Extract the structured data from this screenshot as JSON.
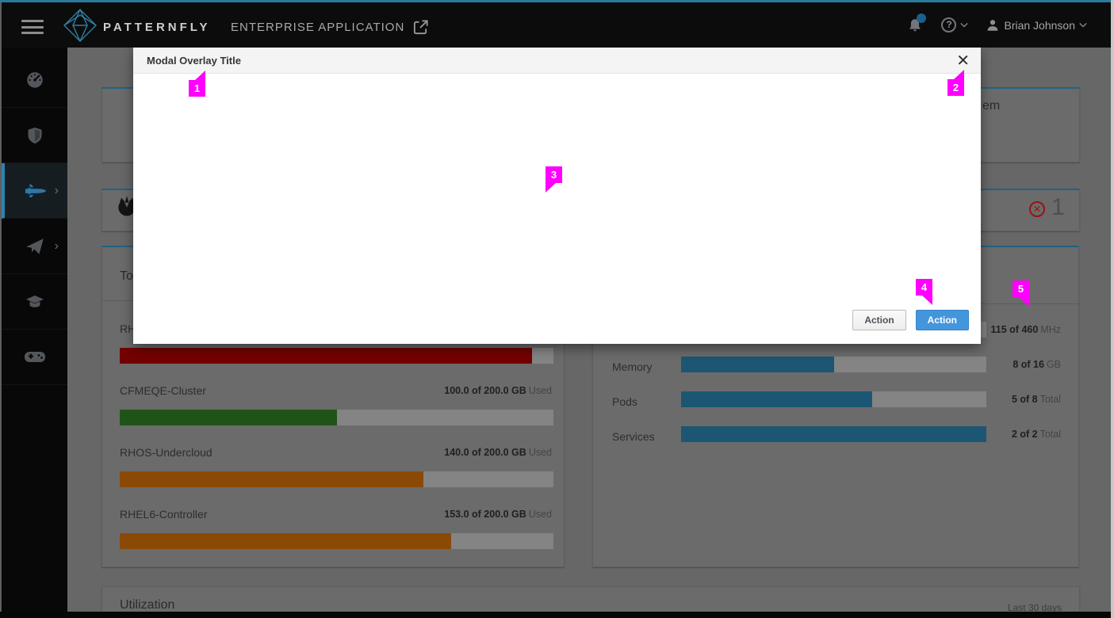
{
  "frame": {
    "top_border_color": "#2a7a9d",
    "bottom_bar_color": "#070707",
    "right_edge_color": "#c9c9c9"
  },
  "navbar": {
    "brand_bold": "PATTERNFLY",
    "brand_rest": "ENTERPRISE APPLICATION",
    "user_name": "Brian Johnson",
    "notification_dot_color": "#1c5f8c",
    "icons": [
      "hamburger-icon",
      "patternfly-logo",
      "external-link-icon",
      "bell-icon",
      "question-circle-icon",
      "user-icon",
      "chevron-down-icon"
    ]
  },
  "sidebar": {
    "items": [
      {
        "icon": "dashboard-icon",
        "active": false,
        "has_submenu": false
      },
      {
        "icon": "shield-icon",
        "active": false,
        "has_submenu": false
      },
      {
        "icon": "space-shuttle-icon",
        "active": true,
        "has_submenu": true
      },
      {
        "icon": "paper-plane-icon",
        "active": false,
        "has_submenu": true
      },
      {
        "icon": "graduation-cap-icon",
        "active": false,
        "has_submenu": false
      },
      {
        "icon": "gamepad-icon",
        "active": false,
        "has_submenu": false
      }
    ],
    "submenu_chevron": "›"
  },
  "modal": {
    "title": "Modal Overlay Title",
    "close_glyph": "✕",
    "secondary_button": "Action",
    "primary_button": "Action",
    "primary_color": "#4396dc"
  },
  "background": {
    "top_card_text_fragment": "em",
    "status_card": {
      "count": "1",
      "error_glyph": "✕",
      "icon": "error-circle-icon"
    },
    "left_status_card": {
      "icon": "rebel-icon"
    },
    "clusters_card": {
      "title_fragment": "To",
      "rows": [
        {
          "label": "RH",
          "value_bold": "",
          "value_suffix": "",
          "percent": 95,
          "bar_color": "#740101"
        },
        {
          "label": "CFMEQE-Cluster",
          "value_bold": "100.0 of 200.0 GB",
          "value_suffix": "Used",
          "percent": 50,
          "bar_color": "#1f5418"
        },
        {
          "label": "RHOS-Undercloud",
          "value_bold": "140.0 of 200.0 GB",
          "value_suffix": "Used",
          "percent": 70,
          "bar_color": "#8a4a06"
        },
        {
          "label": "RHEL6-Controller",
          "value_bold": "153.0 of 200.0 GB",
          "value_suffix": "Used",
          "percent": 76.5,
          "bar_color": "#8a4a06"
        }
      ]
    },
    "resources_card": {
      "rows": [
        {
          "label": "",
          "value_bold": "115 of 460",
          "value_suffix": "MHz",
          "percent": 25,
          "bar_color": "#1c5673"
        },
        {
          "label": "Memory",
          "value_bold": "8 of 16",
          "value_suffix": "GB",
          "percent": 50,
          "bar_color": "#1c5673"
        },
        {
          "label": "Pods",
          "value_bold": "5 of 8",
          "value_suffix": "Total",
          "percent": 62.5,
          "bar_color": "#1c5673"
        },
        {
          "label": "Services",
          "value_bold": "2 of 2",
          "value_suffix": "Total",
          "percent": 100,
          "bar_color": "#1c5673"
        }
      ]
    },
    "utilization_card": {
      "title": "Utilization",
      "subtitle": "Last 30 days"
    }
  },
  "markers": {
    "color": "#ff00ff",
    "items": [
      {
        "number": "1"
      },
      {
        "number": "2"
      },
      {
        "number": "3"
      },
      {
        "number": "4"
      },
      {
        "number": "5"
      }
    ]
  }
}
